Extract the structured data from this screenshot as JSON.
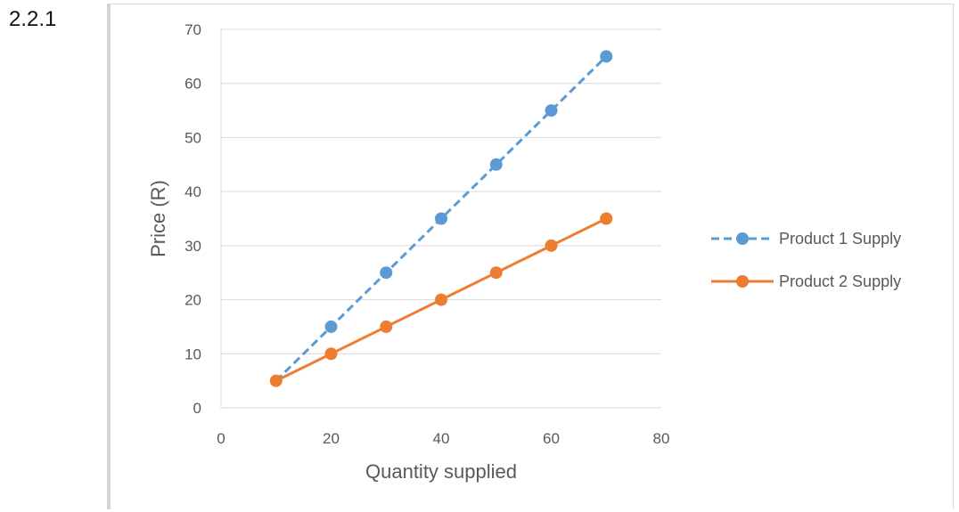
{
  "section_label": "2.2.1",
  "chart_data": {
    "type": "line",
    "title": "",
    "xlabel": "Quantity supplied",
    "ylabel": "Price (R)",
    "xlim": [
      0,
      80
    ],
    "ylim": [
      0,
      70
    ],
    "xticks": [
      0,
      20,
      40,
      60,
      80
    ],
    "yticks": [
      0,
      10,
      20,
      30,
      40,
      50,
      60,
      70
    ],
    "grid": "horizontal",
    "legend_position": "right",
    "series": [
      {
        "name": "Product 1 Supply",
        "color": "#5B9BD5",
        "line_style": "dashed",
        "x": [
          10,
          20,
          30,
          40,
          50,
          60,
          70
        ],
        "y": [
          5,
          15,
          25,
          35,
          45,
          55,
          65
        ],
        "first_marker_hidden": true
      },
      {
        "name": "Product 2 Supply",
        "color": "#ED7D31",
        "line_style": "solid",
        "x": [
          10,
          20,
          30,
          40,
          50,
          60,
          70
        ],
        "y": [
          5,
          10,
          15,
          20,
          25,
          30,
          35
        ],
        "first_marker_hidden": false
      }
    ]
  }
}
